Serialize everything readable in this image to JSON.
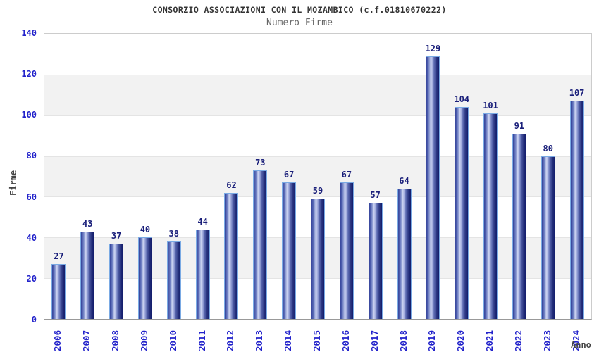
{
  "chart_data": {
    "type": "bar",
    "title": "CONSORZIO ASSOCIAZIONI CON IL MOZAMBICO (c.f.01810670222)",
    "subtitle": "Numero Firme",
    "xlabel": "Anno",
    "ylabel": "Firme",
    "categories": [
      "2006",
      "2007",
      "2008",
      "2009",
      "2010",
      "2011",
      "2012",
      "2013",
      "2014",
      "2015",
      "2016",
      "2017",
      "2018",
      "2019",
      "2020",
      "2021",
      "2022",
      "2023",
      "2024"
    ],
    "values": [
      27,
      43,
      37,
      40,
      38,
      44,
      62,
      73,
      67,
      59,
      67,
      57,
      64,
      129,
      104,
      101,
      91,
      80,
      107
    ],
    "ylim": [
      0,
      140
    ],
    "ytick_step": 20,
    "yticks": [
      140,
      120,
      100,
      80,
      60,
      40,
      20,
      0
    ],
    "grid": "alternating-horizontal-bands",
    "legend": null,
    "colors": {
      "tick_label_blue": "#2323cb",
      "value_label_navy": "#1a1f7a",
      "bar_border_lightblue": "#7aaae4",
      "bar_gradient_dark": "#131c6b",
      "bar_gradient_mid": "#5f70ba",
      "bar_gradient_light": "#cdd5f2",
      "band_gray": "#f2f2f2",
      "plot_border": "#cccccc",
      "axis_line": "#999999",
      "title_color": "#333333",
      "subtitle_color": "#666666",
      "axis_title_color": "#444444"
    }
  }
}
